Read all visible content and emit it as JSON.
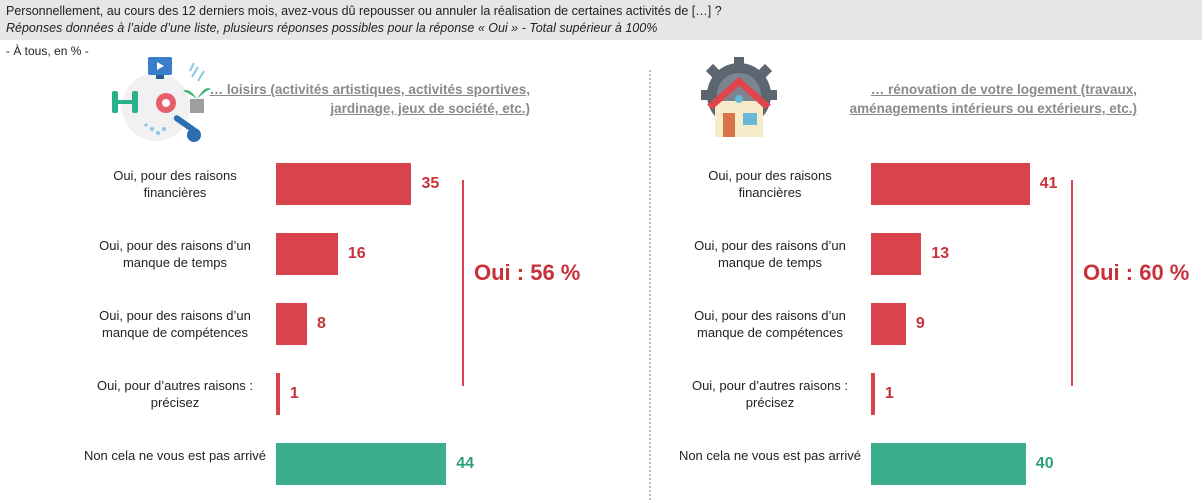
{
  "question": {
    "line1": "Personnellement, au cours des 12 derniers mois, avez-vous dû repousser ou annuler la réalisation de certaines activités de […] ?",
    "line2": "Réponses données à l’aide d’une liste, plusieurs réponses possibles pour la réponse « Oui » - Total supérieur à 100%",
    "base": "- À tous, en % -"
  },
  "panels": [
    {
      "title": "… loisirs (activités artistiques, activités sportives, jardinage, jeux de société, etc.)",
      "icon": "leisure-icon",
      "total_label": "Oui : 56 %"
    },
    {
      "title": "… rénovation de votre logement (travaux, aménagements intérieurs ou extérieurs, etc.)",
      "icon": "house-renovation-icon",
      "total_label": "Oui : 60 %"
    }
  ],
  "chart_data": [
    {
      "type": "bar",
      "orientation": "horizontal",
      "title": "… loisirs (activités artistiques, activités sportives, jardinage, jeux de société, etc.)",
      "categories": [
        "Oui, pour des raisons financières",
        "Oui, pour des raisons d’un manque de temps",
        "Oui, pour des raisons d’un manque de compétences",
        "Oui, pour d’autres raisons : précisez",
        "Non cela ne vous est pas arrivé"
      ],
      "values": [
        35,
        16,
        8,
        1,
        44
      ],
      "colors": [
        "#d9434b",
        "#d9434b",
        "#d9434b",
        "#d9434b",
        "#3aae8d"
      ],
      "annotation": "Oui : 56 %",
      "xlim": [
        0,
        100
      ]
    },
    {
      "type": "bar",
      "orientation": "horizontal",
      "title": "… rénovation de votre logement (travaux, aménagements intérieurs ou extérieurs, etc.)",
      "categories": [
        "Oui, pour des raisons financières",
        "Oui, pour des raisons d’un manque de temps",
        "Oui, pour des raisons d’un manque de compétences",
        "Oui, pour d’autres raisons : précisez",
        "Non cela ne vous est pas arrivé"
      ],
      "values": [
        41,
        13,
        9,
        1,
        40
      ],
      "colors": [
        "#d9434b",
        "#d9434b",
        "#d9434b",
        "#d9434b",
        "#3aae8d"
      ],
      "annotation": "Oui : 60 %",
      "xlim": [
        0,
        100
      ]
    }
  ]
}
